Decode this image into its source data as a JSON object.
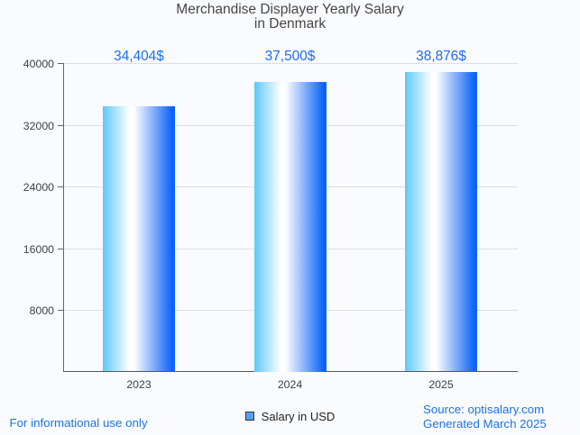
{
  "page": {
    "background": "#fafbfe",
    "footer_left": "For informational use only",
    "footer_right_line1": "Source: optisalary.com",
    "footer_right_line2": "Generated March 2025",
    "footer_color": "#1a73e8"
  },
  "chart_data": {
    "type": "bar",
    "title": "Merchandise Displayer Yearly Salary in Denmark",
    "title_line1": "Merchandise Displayer Yearly Salary",
    "title_line2": "in Denmark",
    "categories": [
      "2023",
      "2024",
      "2025"
    ],
    "series": [
      {
        "name": "Salary in USD",
        "values": [
          34404,
          37500,
          38876
        ]
      }
    ],
    "value_labels": [
      "34,404$",
      "37,500$",
      "38,876$"
    ],
    "y_ticks": [
      8000,
      16000,
      24000,
      32000,
      40000
    ],
    "ylim": [
      0,
      40000
    ],
    "xlabel": "",
    "ylabel": "",
    "grid": true,
    "legend_position": "bottom",
    "legend_label": "Salary in USD",
    "colors": {
      "bar_gradient_left": "#5fc8f8",
      "bar_gradient_middle": "#ffffff",
      "bar_gradient_right": "#0d63f8",
      "value_label": "#1a6ef0",
      "axis_label": "#3c4043",
      "title": "#454545",
      "gridline": "#dcdee3",
      "axis_line": "#5f6368",
      "legend_marker_fill": "#55a1e8",
      "legend_marker_border": "#333333",
      "footer_text": "#1a73e8"
    }
  }
}
